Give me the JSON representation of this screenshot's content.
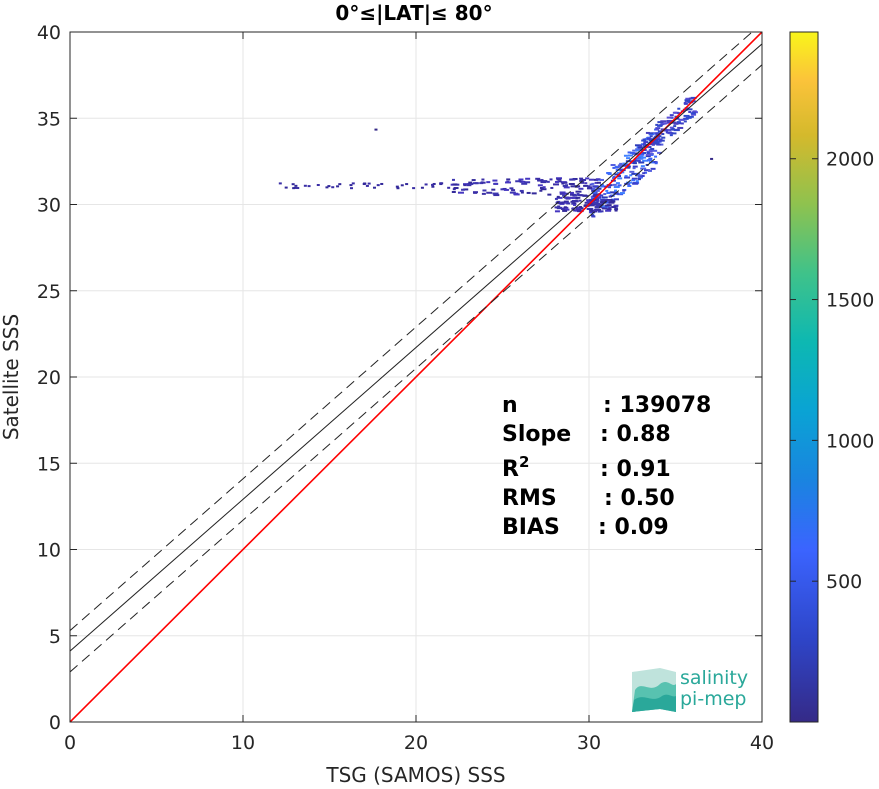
{
  "chart_data": {
    "type": "heatmap",
    "title": "0°≤|LAT|≤ 80°",
    "xlabel": "TSG (SAMOS) SSS",
    "ylabel": "Satellite SSS",
    "xlim": [
      0,
      40
    ],
    "ylim": [
      0,
      40
    ],
    "xticks": [
      "0",
      "10",
      "20",
      "30",
      "40"
    ],
    "yticks": [
      "0",
      "5",
      "10",
      "15",
      "20",
      "25",
      "30",
      "35",
      "40"
    ],
    "grid": true,
    "lines": [
      {
        "name": "1:1",
        "color": "#ff0000",
        "style": "solid",
        "points": [
          [
            0,
            0
          ],
          [
            40,
            40
          ]
        ]
      },
      {
        "name": "fit",
        "color": "#222222",
        "style": "solid",
        "points": [
          [
            0,
            4.11
          ],
          [
            40,
            39.31
          ]
        ]
      },
      {
        "name": "fit+",
        "color": "#222222",
        "style": "dashed",
        "points": [
          [
            0,
            5.3
          ],
          [
            40,
            40.5
          ]
        ]
      },
      {
        "name": "fit-",
        "color": "#222222",
        "style": "dashed",
        "points": [
          [
            0,
            2.9
          ],
          [
            40,
            38.1
          ]
        ]
      }
    ],
    "density_clusters": [
      {
        "x": [
          30.0,
          34.0
        ],
        "y": [
          30.0,
          33.5
        ],
        "intensity": "high"
      },
      {
        "x": [
          33.0,
          36.0
        ],
        "y": [
          33.0,
          35.8
        ],
        "intensity": "medium"
      },
      {
        "x": [
          22.0,
          30.5
        ],
        "y": [
          30.6,
          31.6
        ],
        "intensity": "low"
      },
      {
        "x": [
          28.0,
          31.5
        ],
        "y": [
          29.6,
          30.6
        ],
        "intensity": "low"
      },
      {
        "x": [
          12.0,
          22.0
        ],
        "y": [
          31.0,
          31.3
        ],
        "intensity": "sparse"
      }
    ],
    "colorbar": {
      "min": 0,
      "max": 2450,
      "ticks": [
        "500",
        "1000",
        "1500",
        "2000"
      ],
      "colormap": "parula"
    },
    "stats": [
      {
        "label": "n",
        "value": ": 139078"
      },
      {
        "label": "Slope",
        "value": ": 0.88"
      },
      {
        "label": "R",
        "sup": "2",
        "value": ": 0.91"
      },
      {
        "label": "RMS",
        "value": ": 0.50"
      },
      {
        "label": "BIAS",
        "value": ": 0.09"
      }
    ]
  },
  "logo": {
    "line1": "salinity",
    "line2": "pi-mep"
  },
  "colors": {
    "one_to_one": "#ff0000",
    "fit": "#222222",
    "grid": "#e6e6e6",
    "logo": "#2aa89a"
  }
}
